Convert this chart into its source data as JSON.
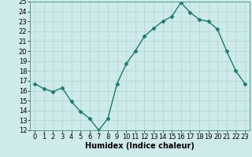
{
  "x": [
    0,
    1,
    2,
    3,
    4,
    5,
    6,
    7,
    8,
    9,
    10,
    11,
    12,
    13,
    14,
    15,
    16,
    17,
    18,
    19,
    20,
    21,
    22,
    23
  ],
  "y": [
    16.7,
    16.2,
    15.9,
    16.3,
    14.9,
    13.9,
    13.2,
    12.0,
    13.2,
    16.7,
    18.7,
    20.0,
    21.5,
    22.3,
    23.0,
    23.5,
    24.9,
    23.9,
    23.2,
    23.0,
    22.2,
    20.0,
    18.0,
    16.7
  ],
  "line_color": "#1a7a6e",
  "marker": "D",
  "markersize": 2.5,
  "linewidth": 1.0,
  "bg_color": "#ceeaea",
  "grid_color": "#b0d4d4",
  "xlabel": "Humidex (Indice chaleur)",
  "ylim": [
    12,
    25
  ],
  "xlim": [
    -0.5,
    23.5
  ],
  "yticks": [
    12,
    13,
    14,
    15,
    16,
    17,
    18,
    19,
    20,
    21,
    22,
    23,
    24,
    25
  ],
  "xticks": [
    0,
    1,
    2,
    3,
    4,
    5,
    6,
    7,
    8,
    9,
    10,
    11,
    12,
    13,
    14,
    15,
    16,
    17,
    18,
    19,
    20,
    21,
    22,
    23
  ],
  "xlabel_fontsize": 7.0,
  "tick_fontsize": 6.0
}
